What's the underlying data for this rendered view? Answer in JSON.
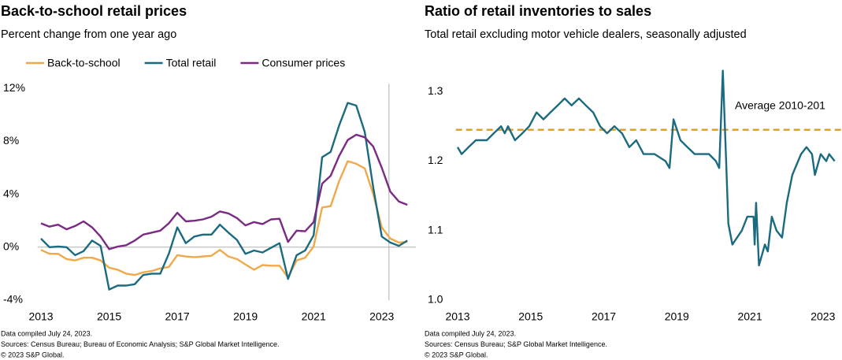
{
  "chart_data": [
    {
      "type": "line",
      "title": "Back-to-school retail prices",
      "subtitle": "Percent change from one year ago",
      "x": [
        2013,
        2013.25,
        2013.5,
        2013.75,
        2014,
        2014.25,
        2014.5,
        2014.75,
        2015,
        2015.25,
        2015.5,
        2015.75,
        2016,
        2016.25,
        2016.5,
        2016.75,
        2017,
        2017.25,
        2017.5,
        2017.75,
        2018,
        2018.25,
        2018.5,
        2018.75,
        2019,
        2019.25,
        2019.5,
        2019.75,
        2020,
        2020.25,
        2020.5,
        2020.75,
        2021,
        2021.25,
        2021.5,
        2021.75,
        2022,
        2022.25,
        2022.5,
        2022.75,
        2023,
        2023.25,
        2023.5,
        2023.75
      ],
      "series": [
        {
          "name": "Back-to-school",
          "color": "#f0a94a",
          "values": [
            -0.2,
            -0.5,
            -0.5,
            -0.9,
            -1.0,
            -0.8,
            -0.8,
            -1.0,
            -1.55,
            -1.7,
            -2.0,
            -2.1,
            -1.9,
            -1.8,
            -1.6,
            -1.5,
            -0.6,
            -0.7,
            -0.75,
            -0.7,
            -0.65,
            -0.2,
            -0.7,
            -0.9,
            -1.3,
            -1.7,
            -1.35,
            -1.4,
            -1.4,
            -2.3,
            -1.0,
            -0.8,
            0.05,
            3.0,
            3.1,
            5.0,
            6.5,
            6.3,
            5.95,
            4.0,
            1.5,
            0.65,
            0.35,
            0.4
          ]
        },
        {
          "name": "Total retail",
          "color": "#1a6b80",
          "values": [
            0.65,
            0,
            0.05,
            0,
            -0.6,
            -0.3,
            0.5,
            0.1,
            -3.2,
            -2.9,
            -2.9,
            -2.8,
            -2.1,
            -2.0,
            -2.0,
            -0.5,
            1.5,
            0.3,
            0.8,
            0.95,
            0.95,
            1.7,
            1.1,
            0.55,
            -0.5,
            -0.25,
            -0.4,
            -0.05,
            0.3,
            -2.4,
            -0.6,
            -0.25,
            0.9,
            6.8,
            7.2,
            9.2,
            10.9,
            10.7,
            8.7,
            4.5,
            0.8,
            0.35,
            0.1,
            0.5
          ]
        },
        {
          "name": "Consumer prices",
          "color": "#7b2a83",
          "values": [
            1.8,
            1.55,
            1.7,
            1.35,
            1.6,
            1.95,
            1.5,
            0.8,
            -0.15,
            0.05,
            0.15,
            0.5,
            0.95,
            1.1,
            1.25,
            1.8,
            2.6,
            1.95,
            2.0,
            2.1,
            2.3,
            2.7,
            2.55,
            2.2,
            1.65,
            1.9,
            1.75,
            2.1,
            2.15,
            0.4,
            1.25,
            1.2,
            1.9,
            4.8,
            5.4,
            6.9,
            8.1,
            8.5,
            8.3,
            7.6,
            6.0,
            4.2,
            3.45,
            3.2
          ]
        }
      ],
      "xlim": [
        2012.9,
        2024
      ],
      "xticks": [
        2013,
        2015,
        2017,
        2019,
        2021,
        2023
      ],
      "ylim": [
        -4,
        12.7
      ],
      "yticks": [
        {
          "value": 12,
          "label": "12%"
        },
        {
          "value": 8,
          "label": "8%"
        },
        {
          "value": 4,
          "label": "4%"
        },
        {
          "value": 0,
          "label": "0%"
        },
        {
          "value": -4,
          "label": "-4%"
        }
      ],
      "zero_line": true,
      "vline": 2023.21,
      "legend": "top",
      "notes": [
        "Data compiled July 24, 2023.",
        " Sources: Census Bureau;  Bureau of Economic Analysis; S&P Global Market Intelligence.",
        "© 2023 S&P Global."
      ]
    },
    {
      "type": "line",
      "title": "Ratio of retail inventories to sales",
      "subtitle": "Total retail excluding motor vehicle dealers, seasonally adjusted",
      "x": [
        2013.0,
        2013.11,
        2013.3,
        2013.5,
        2013.8,
        2013.99,
        2014.19,
        2014.29,
        2014.38,
        2014.57,
        2014.77,
        2014.96,
        2015.16,
        2015.35,
        2015.54,
        2015.74,
        2015.93,
        2016.12,
        2016.32,
        2016.51,
        2016.71,
        2016.9,
        2017.09,
        2017.29,
        2017.5,
        2017.7,
        2017.89,
        2018.09,
        2018.39,
        2018.69,
        2018.8,
        2018.91,
        2019.1,
        2019.29,
        2019.49,
        2019.88,
        2020.07,
        2020.16,
        2020.26,
        2020.35,
        2020.41,
        2020.52,
        2020.65,
        2020.78,
        2020.93,
        2021.1,
        2021.13,
        2021.17,
        2021.25,
        2021.41,
        2021.49,
        2021.6,
        2021.73,
        2021.88,
        2022.01,
        2022.16,
        2022.4,
        2022.55,
        2022.7,
        2022.78,
        2022.94,
        2023.09,
        2023.17,
        2023.32
      ],
      "series": [
        {
          "color": "#1a6b80",
          "values": [
            1.22,
            1.21,
            1.22,
            1.23,
            1.23,
            1.24,
            1.25,
            1.24,
            1.25,
            1.23,
            1.24,
            1.25,
            1.27,
            1.26,
            1.27,
            1.28,
            1.29,
            1.28,
            1.29,
            1.28,
            1.27,
            1.25,
            1.24,
            1.25,
            1.24,
            1.22,
            1.23,
            1.21,
            1.21,
            1.2,
            1.19,
            1.26,
            1.23,
            1.22,
            1.21,
            1.21,
            1.2,
            1.19,
            1.33,
            1.2,
            1.11,
            1.08,
            1.09,
            1.1,
            1.12,
            1.12,
            1.08,
            1.14,
            1.05,
            1.08,
            1.07,
            1.12,
            1.1,
            1.09,
            1.14,
            1.18,
            1.21,
            1.22,
            1.21,
            1.18,
            1.21,
            1.2,
            1.21,
            1.2
          ]
        }
      ],
      "xlim": [
        2012.95,
        2023.5
      ],
      "xticks": [
        2013,
        2015,
        2017,
        2019,
        2021,
        2023
      ],
      "ylim": [
        1,
        1.335
      ],
      "yticks": [
        {
          "value": 1,
          "label": "1.0"
        },
        1.1,
        1.2,
        1.3
      ],
      "reference_line": {
        "value": 1.245,
        "label": "Average  2010-201",
        "color": "#e0a030"
      },
      "notes": [
        "Data compiled July 24, 2023.",
        " Sources: Census Bureau; S&P Global Market Intelligence.",
        "© 2023 S&P Global."
      ]
    }
  ]
}
